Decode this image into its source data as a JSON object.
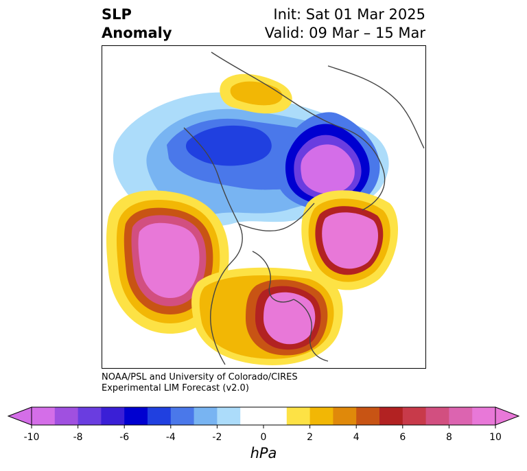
{
  "title": {
    "left_line1": "SLP",
    "left_line2": "Anomaly",
    "right_line1": "Init: Sat 01 Mar 2025",
    "right_line2": "Valid: 09 Mar – 15 Mar"
  },
  "credit": {
    "line1": "NOAA/PSL and University of Colorado/CIRES",
    "line2": "Experimental LIM Forecast (v2.0)"
  },
  "colorbar": {
    "unit_label": "hPa",
    "ticks": [
      "-10",
      "-8",
      "-6",
      "-4",
      "-2",
      "0",
      "2",
      "4",
      "6",
      "8",
      "10"
    ],
    "colors": [
      "#d46ee8",
      "#a050e0",
      "#6a3de0",
      "#3a1fd6",
      "#0000d0",
      "#2040e0",
      "#4a78ea",
      "#78b4f2",
      "#acdcfa",
      "#ffffff",
      "#ffffff",
      "#fde245",
      "#f2b705",
      "#e0890a",
      "#c85414",
      "#b22222",
      "#c83a4a",
      "#d24f80",
      "#dc64b0",
      "#e878d8"
    ],
    "extend": "both"
  },
  "map_data": {
    "variable": "SLP Anomaly",
    "units": "hPa",
    "features": [
      {
        "name": "negative-anomaly-siberia-north",
        "sign": "negative",
        "peak_hpa": -10
      },
      {
        "name": "negative-anomaly-arctic-russia",
        "sign": "negative",
        "peak_hpa": -6
      },
      {
        "name": "negative-anomaly-greenland",
        "sign": "negative",
        "peak_hpa": -4
      },
      {
        "name": "positive-anomaly-north-pacific",
        "sign": "positive",
        "peak_hpa": 10
      },
      {
        "name": "positive-anomaly-eastern-north-america",
        "sign": "positive",
        "peak_hpa": 10
      },
      {
        "name": "positive-anomaly-north-atlantic",
        "sign": "positive",
        "peak_hpa": 10
      },
      {
        "name": "positive-anomaly-asia-interior",
        "sign": "positive",
        "peak_hpa": 4
      }
    ]
  }
}
